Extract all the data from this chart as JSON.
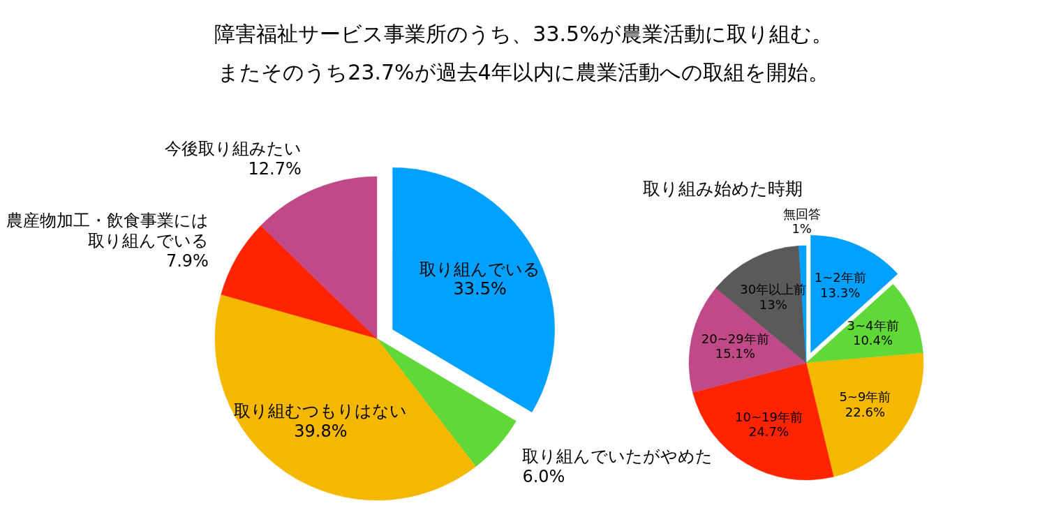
{
  "chart_data": [
    {
      "type": "pie",
      "title": "障害福祉サービス事業所のうち、33.5%が農業活動に取り組む。",
      "subtitle": "またそのうち23.7%が過去4年以内に農業活動への取組を開始。",
      "categories": [
        "取り組んでいる",
        "取り組んでいたがやめた",
        "取り組むつもりはない",
        "農産物加工・飲食事業には取り組んでいる",
        "今後取り組みたい"
      ],
      "values": [
        33.5,
        6.0,
        39.8,
        7.9,
        12.7
      ],
      "value_labels": [
        "33.5%",
        "6.0%",
        "39.8%",
        "7.9%",
        "12.7%"
      ],
      "colors": [
        "#00a0ff",
        "#60d838",
        "#f5b800",
        "#ff2400",
        "#c04a88"
      ],
      "legend": false
    },
    {
      "type": "pie",
      "title": "取り組み始めた時期",
      "categories": [
        "1~2年前",
        "3~4年前",
        "5~9年前",
        "10~19年前",
        "20~29年前",
        "30年以上前",
        "無回答"
      ],
      "values": [
        13.3,
        10.4,
        22.6,
        24.7,
        15.1,
        13,
        1
      ],
      "value_labels": [
        "13.3%",
        "10.4%",
        "22.6%",
        "24.7%",
        "15.1%",
        "13%",
        "1%"
      ],
      "colors": [
        "#00a0ff",
        "#60d838",
        "#f5b800",
        "#ff2400",
        "#c04a88",
        "#5a5a5a",
        "#00a0ff"
      ],
      "legend": false
    }
  ]
}
